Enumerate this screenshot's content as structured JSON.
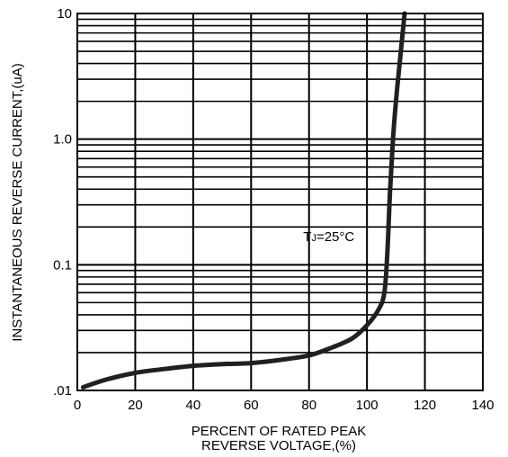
{
  "chart_data": {
    "type": "line",
    "title": "",
    "xlabel_line1": "PERCENT OF RATED PEAK",
    "xlabel_line2": "REVERSE VOLTAGE,(%)",
    "ylabel": "INSTANTANEOUS REVERSE CURRENT,(uA)",
    "xlim": [
      0,
      140
    ],
    "ylim": [
      0.01,
      10
    ],
    "y_scale": "log",
    "grid": true,
    "x_ticks": [
      0,
      20,
      40,
      60,
      80,
      100,
      120,
      140
    ],
    "x_tick_labels": [
      "0",
      "20",
      "40",
      "60",
      "80",
      "100",
      "120",
      "140"
    ],
    "y_ticks": [
      0.01,
      0.1,
      1,
      10
    ],
    "y_tick_labels": [
      ".01",
      "0.1",
      "1.0",
      "10"
    ],
    "annotation": {
      "main": "T",
      "sub": "J",
      "rest": "=25",
      "unit": "°C",
      "x": 78,
      "y": 0.155
    },
    "series": [
      {
        "color": "#231f20",
        "points": [
          [
            2,
            0.0106
          ],
          [
            10,
            0.0122
          ],
          [
            20,
            0.0138
          ],
          [
            30,
            0.0148
          ],
          [
            40,
            0.0157
          ],
          [
            50,
            0.0162
          ],
          [
            60,
            0.0165
          ],
          [
            70,
            0.0175
          ],
          [
            80,
            0.019
          ],
          [
            88,
            0.022
          ],
          [
            95,
            0.026
          ],
          [
            100,
            0.033
          ],
          [
            104,
            0.044
          ],
          [
            106,
            0.06
          ],
          [
            107,
            0.12
          ],
          [
            108,
            0.4
          ],
          [
            109,
            1.0
          ],
          [
            110,
            2.0
          ],
          [
            111.5,
            4.5
          ],
          [
            113,
            10
          ]
        ]
      }
    ]
  }
}
